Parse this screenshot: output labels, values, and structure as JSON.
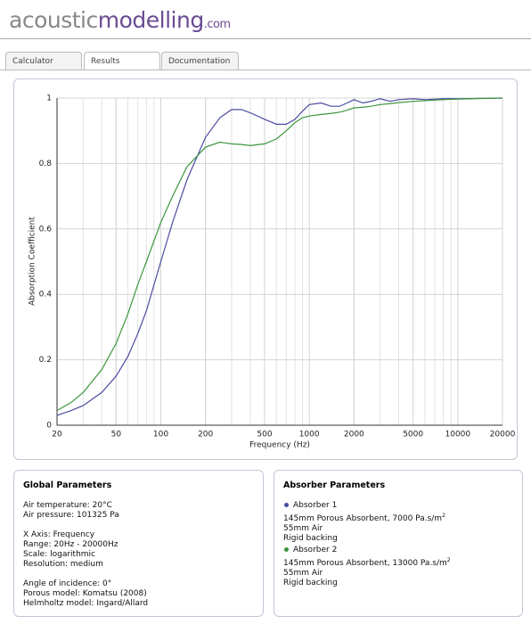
{
  "header": {
    "logo_part1": "acoustic",
    "logo_part2": "modelling",
    "logo_part3": ".com"
  },
  "tabs": [
    "Calculator",
    "Results",
    "Documentation"
  ],
  "chart_data": {
    "type": "line",
    "xlabel": "Frequency (Hz)",
    "ylabel": "Absorption Coefficient",
    "x": [
      20,
      25,
      30,
      40,
      50,
      60,
      70,
      80,
      100,
      120,
      150,
      200,
      250,
      300,
      350,
      400,
      500,
      600,
      700,
      800,
      900,
      1000,
      1200,
      1400,
      1600,
      1800,
      2000,
      2300,
      2600,
      3000,
      3500,
      4000,
      5000,
      6000,
      8000,
      10000,
      15000,
      20000
    ],
    "series": [
      {
        "name": "Absorber 1",
        "color": "#4b4ba3",
        "values": [
          0.03,
          0.045,
          0.06,
          0.1,
          0.15,
          0.21,
          0.28,
          0.35,
          0.5,
          0.62,
          0.75,
          0.88,
          0.94,
          0.965,
          0.965,
          0.955,
          0.935,
          0.92,
          0.92,
          0.935,
          0.96,
          0.98,
          0.985,
          0.975,
          0.975,
          0.985,
          0.995,
          0.985,
          0.99,
          0.998,
          0.99,
          0.995,
          0.998,
          0.995,
          0.998,
          0.998,
          0.999,
          1.0
        ]
      },
      {
        "name": "Absorber 2",
        "color": "#3c963c",
        "values": [
          0.045,
          0.07,
          0.1,
          0.17,
          0.25,
          0.34,
          0.43,
          0.5,
          0.62,
          0.7,
          0.79,
          0.85,
          0.865,
          0.86,
          0.858,
          0.855,
          0.86,
          0.875,
          0.9,
          0.925,
          0.94,
          0.945,
          0.95,
          0.953,
          0.957,
          0.963,
          0.97,
          0.972,
          0.975,
          0.98,
          0.983,
          0.986,
          0.99,
          0.992,
          0.995,
          0.997,
          0.999,
          1.0
        ]
      }
    ],
    "xlim": [
      20,
      20000
    ],
    "xticks": [
      20,
      50,
      100,
      200,
      500,
      1000,
      2000,
      5000,
      10000,
      20000
    ],
    "xscale": "log",
    "ylim": [
      0,
      1
    ],
    "yticks": [
      0,
      0.2,
      0.4,
      0.6,
      0.8,
      1
    ],
    "grid": true
  },
  "global": {
    "title": "Global Parameters",
    "lines": [
      "Air temperature: 20°C",
      "Air pressure: 101325 Pa",
      "X Axis: Frequency",
      "Range: 20Hz - 20000Hz",
      "Scale: logarithmic",
      "Resolution: medium",
      "Angle of incidence: 0°",
      "Porous model: Komatsu (2008)",
      "Helmholtz model: Ingard/Allard"
    ]
  },
  "absorbers": {
    "title": "Absorber Parameters",
    "items": [
      {
        "layer1": "145mm Porous Absorbent, 7000 Pa.s/m",
        "sup": "2",
        "layer2": "55mm Air",
        "backing": "Rigid backing"
      },
      {
        "layer1": "145mm Porous Absorbent, 13000 Pa.s/m",
        "sup": "2",
        "layer2": "55mm Air",
        "backing": "Rigid backing"
      }
    ]
  }
}
